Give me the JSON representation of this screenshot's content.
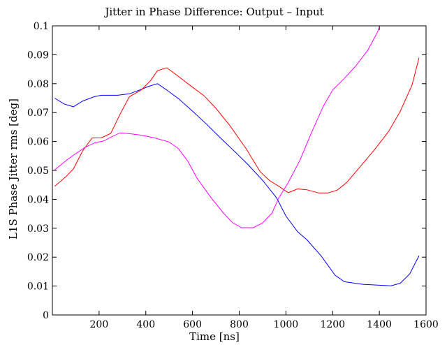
{
  "chart_data": {
    "type": "line",
    "title": "Jitter in Phase Difference: Output – Input",
    "xlabel": "Time [ns]",
    "ylabel": "L1S Phase Jitter rms [deg]",
    "xlim": [
      0,
      1600
    ],
    "ylim": [
      0,
      0.1
    ],
    "grid": false,
    "x_ticks": [
      200,
      400,
      600,
      800,
      1000,
      1200,
      1400,
      1600
    ],
    "x_tick_labels": [
      "200",
      "400",
      "600",
      "800",
      "1000",
      "1200",
      "1400",
      "1600"
    ],
    "y_ticks": [
      0,
      0.01,
      0.02,
      0.03,
      0.04,
      0.05,
      0.06,
      0.07,
      0.08,
      0.09,
      0.1
    ],
    "y_tick_labels": [
      "0",
      "0.01",
      "0.02",
      "0.03",
      "0.04",
      "0.05",
      "0.06",
      "0.07",
      "0.08",
      "0.09",
      "0.1"
    ],
    "series": [
      {
        "color": "#0000ff",
        "points": [
          [
            10,
            0.075
          ],
          [
            50,
            0.073
          ],
          [
            90,
            0.072
          ],
          [
            130,
            0.074
          ],
          [
            180,
            0.0755
          ],
          [
            210,
            0.076
          ],
          [
            280,
            0.076
          ],
          [
            330,
            0.0765
          ],
          [
            380,
            0.078
          ],
          [
            410,
            0.079
          ],
          [
            450,
            0.08
          ],
          [
            490,
            0.0778
          ],
          [
            540,
            0.0748
          ],
          [
            600,
            0.0705
          ],
          [
            660,
            0.066
          ],
          [
            720,
            0.0612
          ],
          [
            780,
            0.0566
          ],
          [
            840,
            0.0518
          ],
          [
            900,
            0.0466
          ],
          [
            960,
            0.0405
          ],
          [
            1000,
            0.0342
          ],
          [
            1050,
            0.0288
          ],
          [
            1090,
            0.026
          ],
          [
            1150,
            0.0205
          ],
          [
            1210,
            0.0138
          ],
          [
            1250,
            0.0115
          ],
          [
            1330,
            0.0106
          ],
          [
            1400,
            0.0103
          ],
          [
            1450,
            0.0101
          ],
          [
            1490,
            0.011
          ],
          [
            1530,
            0.0142
          ],
          [
            1570,
            0.0205
          ]
        ]
      },
      {
        "color": "#ff0000",
        "points": [
          [
            10,
            0.0445
          ],
          [
            60,
            0.048
          ],
          [
            90,
            0.0505
          ],
          [
            130,
            0.0568
          ],
          [
            170,
            0.0612
          ],
          [
            210,
            0.0613
          ],
          [
            250,
            0.0628
          ],
          [
            290,
            0.0695
          ],
          [
            330,
            0.0755
          ],
          [
            380,
            0.0778
          ],
          [
            420,
            0.081
          ],
          [
            450,
            0.0845
          ],
          [
            490,
            0.0855
          ],
          [
            540,
            0.0825
          ],
          [
            600,
            0.0788
          ],
          [
            650,
            0.0758
          ],
          [
            700,
            0.0715
          ],
          [
            760,
            0.0655
          ],
          [
            830,
            0.0575
          ],
          [
            890,
            0.0495
          ],
          [
            930,
            0.0465
          ],
          [
            970,
            0.0445
          ],
          [
            1010,
            0.0423
          ],
          [
            1050,
            0.0436
          ],
          [
            1090,
            0.0433
          ],
          [
            1140,
            0.0422
          ],
          [
            1180,
            0.0422
          ],
          [
            1220,
            0.0432
          ],
          [
            1260,
            0.0458
          ],
          [
            1320,
            0.0515
          ],
          [
            1380,
            0.0572
          ],
          [
            1440,
            0.0635
          ],
          [
            1490,
            0.0705
          ],
          [
            1540,
            0.0795
          ],
          [
            1570,
            0.089
          ]
        ]
      },
      {
        "color": "#ff00ff",
        "points": [
          [
            10,
            0.0502
          ],
          [
            60,
            0.0535
          ],
          [
            100,
            0.0558
          ],
          [
            140,
            0.058
          ],
          [
            180,
            0.0595
          ],
          [
            220,
            0.0602
          ],
          [
            250,
            0.0615
          ],
          [
            290,
            0.063
          ],
          [
            330,
            0.0627
          ],
          [
            380,
            0.0622
          ],
          [
            440,
            0.0612
          ],
          [
            500,
            0.0598
          ],
          [
            540,
            0.0575
          ],
          [
            580,
            0.0532
          ],
          [
            620,
            0.0472
          ],
          [
            680,
            0.0405
          ],
          [
            730,
            0.0355
          ],
          [
            770,
            0.032
          ],
          [
            810,
            0.0302
          ],
          [
            860,
            0.0302
          ],
          [
            900,
            0.0318
          ],
          [
            940,
            0.0352
          ],
          [
            970,
            0.0405
          ],
          [
            1010,
            0.0458
          ],
          [
            1060,
            0.0535
          ],
          [
            1110,
            0.0632
          ],
          [
            1160,
            0.0722
          ],
          [
            1200,
            0.0778
          ],
          [
            1250,
            0.0818
          ],
          [
            1300,
            0.0862
          ],
          [
            1350,
            0.0915
          ],
          [
            1390,
            0.0975
          ],
          [
            1400,
            0.0995
          ]
        ]
      }
    ]
  }
}
